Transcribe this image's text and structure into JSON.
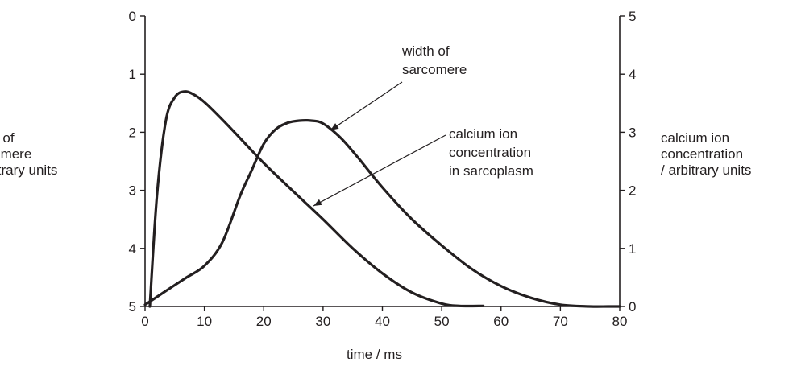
{
  "chart_data": {
    "type": "line",
    "xlabel": "time / ms",
    "xlim": [
      0,
      80
    ],
    "x_ticks": [
      0,
      10,
      20,
      30,
      40,
      50,
      60,
      70,
      80
    ],
    "ylabel_left": [
      "width of",
      "sarcomere",
      "/ arbitrary units"
    ],
    "ylim_left": [
      0,
      5
    ],
    "y_left_inverted": true,
    "y_left_ticks": [
      0,
      1,
      2,
      3,
      4,
      5
    ],
    "ylabel_right": [
      "calcium ion",
      "concentration",
      "/ arbitrary units"
    ],
    "ylim_right": [
      0,
      5
    ],
    "y_right_ticks": [
      0,
      1,
      2,
      3,
      4,
      5
    ],
    "grid": false,
    "series": [
      {
        "name": "width of sarcomere",
        "axis": "left",
        "x": [
          0,
          4,
          7,
          10,
          13,
          16,
          18,
          20,
          22,
          24,
          26,
          28,
          30,
          33,
          36,
          40,
          45,
          50,
          55,
          60,
          65,
          70,
          75,
          78,
          80
        ],
        "y": [
          4.97,
          4.7,
          4.5,
          4.3,
          3.9,
          3.1,
          2.65,
          2.2,
          1.95,
          1.84,
          1.8,
          1.8,
          1.85,
          2.1,
          2.45,
          2.95,
          3.5,
          3.95,
          4.35,
          4.65,
          4.85,
          4.97,
          5.0,
          5.0,
          5.0
        ]
      },
      {
        "name": "calcium ion concentration in sarcoplasm",
        "axis": "right",
        "x": [
          0.8,
          2,
          3.5,
          5,
          6.5,
          8,
          10,
          13,
          16,
          20,
          25,
          30,
          35,
          40,
          45,
          50,
          53,
          57
        ],
        "y": [
          0,
          1.9,
          3.2,
          3.6,
          3.7,
          3.66,
          3.52,
          3.22,
          2.9,
          2.47,
          1.98,
          1.5,
          1.0,
          0.57,
          0.24,
          0.05,
          0.01,
          0.01
        ]
      }
    ],
    "annotations": [
      {
        "lines": [
          "width of",
          "sarcomere"
        ]
      },
      {
        "lines": [
          "calcium ion",
          "concentration",
          "in sarcoplasm"
        ]
      }
    ]
  }
}
